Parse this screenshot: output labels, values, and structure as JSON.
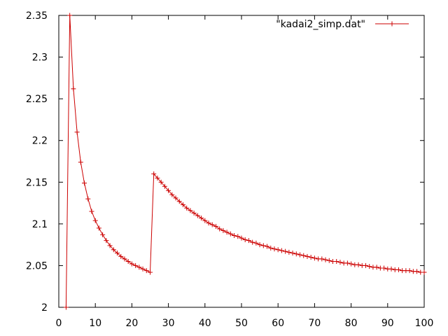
{
  "chart_data": {
    "type": "line",
    "title": "",
    "xlabel": "",
    "ylabel": "",
    "xlim": [
      0,
      100
    ],
    "ylim": [
      2,
      2.35
    ],
    "x_ticks": [
      "0",
      "10",
      "20",
      "30",
      "40",
      "50",
      "60",
      "70",
      "80",
      "90",
      "100"
    ],
    "y_ticks": [
      "2",
      "2.05",
      "2.1",
      "2.15",
      "2.2",
      "2.25",
      "2.3",
      "2.35"
    ],
    "grid": false,
    "legend_position": "top-right",
    "series": [
      {
        "name": "\"kadai2_simp.dat\"",
        "color": "#cc0000",
        "marker": "plus",
        "x": [
          2,
          3,
          4,
          5,
          6,
          7,
          8,
          9,
          10,
          11,
          12,
          13,
          14,
          15,
          16,
          17,
          18,
          19,
          20,
          21,
          22,
          23,
          24,
          25,
          26,
          27,
          28,
          29,
          30,
          31,
          32,
          33,
          34,
          35,
          36,
          37,
          38,
          39,
          40,
          41,
          42,
          43,
          44,
          45,
          46,
          47,
          48,
          49,
          50,
          51,
          52,
          53,
          54,
          55,
          56,
          57,
          58,
          59,
          60,
          61,
          62,
          63,
          64,
          65,
          66,
          67,
          68,
          69,
          70,
          71,
          72,
          73,
          74,
          75,
          76,
          77,
          78,
          79,
          80,
          81,
          82,
          83,
          84,
          85,
          86,
          87,
          88,
          89,
          90,
          91,
          92,
          93,
          94,
          95,
          96,
          97,
          98,
          99,
          100
        ],
        "y": [
          2.0,
          2.35,
          2.262,
          2.21,
          2.174,
          2.149,
          2.13,
          2.115,
          2.104,
          2.095,
          2.087,
          2.08,
          2.074,
          2.069,
          2.065,
          2.061,
          2.058,
          2.055,
          2.052,
          2.05,
          2.048,
          2.046,
          2.044,
          2.042,
          2.16,
          2.155,
          2.15,
          2.145,
          2.14,
          2.135,
          2.131,
          2.127,
          2.123,
          2.119,
          2.116,
          2.113,
          2.11,
          2.107,
          2.104,
          2.101,
          2.099,
          2.097,
          2.094,
          2.092,
          2.09,
          2.088,
          2.086,
          2.085,
          2.083,
          2.081,
          2.08,
          2.078,
          2.077,
          2.075,
          2.074,
          2.073,
          2.071,
          2.07,
          2.069,
          2.068,
          2.067,
          2.066,
          2.065,
          2.064,
          2.063,
          2.062,
          2.061,
          2.06,
          2.059,
          2.058,
          2.058,
          2.057,
          2.056,
          2.055,
          2.055,
          2.054,
          2.053,
          2.053,
          2.052,
          2.051,
          2.051,
          2.05,
          2.05,
          2.049,
          2.048,
          2.048,
          2.047,
          2.047,
          2.046,
          2.046,
          2.045,
          2.045,
          2.044,
          2.044,
          2.044,
          2.043,
          2.043,
          2.042,
          2.042
        ]
      }
    ]
  }
}
